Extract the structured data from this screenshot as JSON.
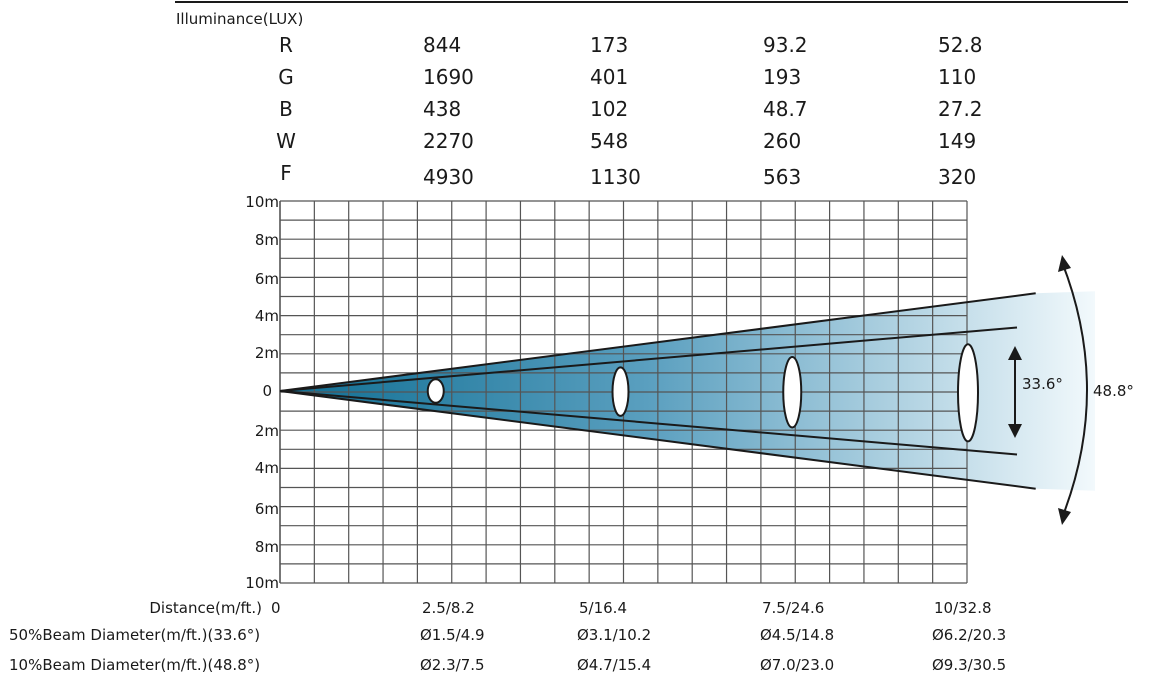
{
  "illuminance": {
    "title": "Illuminance(LUX)",
    "rows": [
      {
        "label": "R",
        "values": [
          "844",
          "173",
          "93.2",
          "52.8"
        ]
      },
      {
        "label": "G",
        "values": [
          "1690",
          "401",
          "193",
          "110"
        ]
      },
      {
        "label": "B",
        "values": [
          "438",
          "102",
          "48.7",
          "27.2"
        ]
      },
      {
        "label": "W",
        "values": [
          "2270",
          "548",
          "260",
          "149"
        ]
      },
      {
        "label": "F",
        "values": [
          "4930",
          "1130",
          "563",
          "320"
        ]
      }
    ]
  },
  "y_axis_labels": [
    "10m",
    "8m",
    "6m",
    "4m",
    "2m",
    "0",
    "2m",
    "4m",
    "6m",
    "8m",
    "10m"
  ],
  "beam": {
    "angle_50": "33.6°",
    "angle_10": "48.8°",
    "half_width_50_m": [
      0.75,
      1.55,
      2.25,
      3.1
    ],
    "half_width_10_m": [
      1.15,
      2.35,
      3.5,
      4.65
    ],
    "colors": {
      "dark": "#1a7a9e",
      "light": "#e8f4fa",
      "line": "#1a1a1a"
    }
  },
  "bottom_table": [
    {
      "label": "Distance(m/ft.)",
      "values": [
        "0",
        "2.5/8.2",
        "5/16.4",
        "7.5/24.6",
        "10/32.8"
      ]
    },
    {
      "label": "50%Beam Diameter(m/ft.)(33.6°)",
      "values": [
        "Ø1.5/4.9",
        "Ø3.1/10.2",
        "Ø4.5/14.8",
        "Ø6.2/20.3"
      ]
    },
    {
      "label": "10%Beam Diameter(m/ft.)(48.8°)",
      "values": [
        "Ø2.3/7.5",
        "Ø4.7/15.4",
        "Ø7.0/23.0",
        "Ø9.3/30.5"
      ]
    }
  ]
}
